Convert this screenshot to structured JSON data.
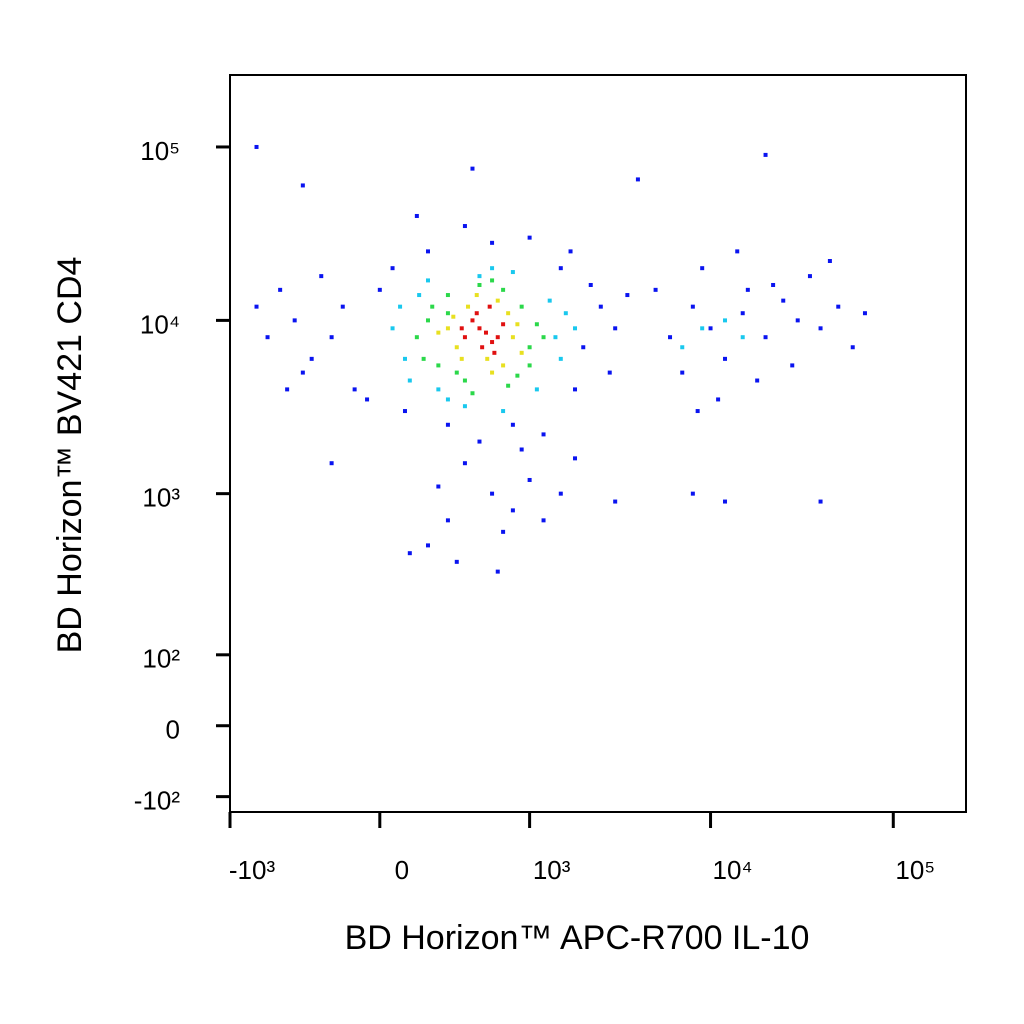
{
  "chart_data": {
    "type": "scatter",
    "x_label": "BD Horizon™ APC-R700  IL-10",
    "y_label": "BD Horizon™ BV421 CD4",
    "xscale": "biexponential",
    "yscale": "biexponential",
    "xlim": [
      -1000,
      250000
    ],
    "ylim": [
      -130,
      260000
    ],
    "xticks": [
      {
        "value": -1000,
        "label": "-10³"
      },
      0,
      {
        "value": 1000,
        "label": "10³"
      },
      {
        "value": 10000,
        "label": "10⁴"
      },
      {
        "value": 100000,
        "label": "10⁵"
      }
    ],
    "yticks": [
      {
        "value": -100,
        "label": "-10²"
      },
      0,
      {
        "value": 100,
        "label": "10²"
      },
      {
        "value": 1000,
        "label": "10³"
      },
      {
        "value": 10000,
        "label": "10⁴"
      },
      {
        "value": 100000,
        "label": "10⁵"
      }
    ],
    "series": [
      {
        "color": "#0a14f0",
        "x": [
          -200,
          -150,
          -300,
          0,
          -100,
          50,
          100,
          200,
          300,
          2000,
          2500,
          1800,
          3000,
          1500,
          800,
          1000,
          -400,
          -250,
          -50,
          2200,
          400,
          1200,
          600,
          -350,
          150,
          2800,
          3500,
          1700,
          -700,
          450,
          20000,
          4000,
          -350,
          6000,
          8000,
          10000,
          12000,
          15000,
          20000,
          25000,
          30000,
          40000,
          7000,
          9000,
          18000,
          35000,
          50000,
          5000,
          11000,
          22000,
          60000,
          14000,
          45000,
          70000,
          28000,
          8500,
          16000,
          400,
          600,
          800,
          300,
          1000,
          700,
          200,
          900,
          1500,
          500,
          350,
          650,
          120,
          1200,
          3000,
          -200,
          1800,
          250,
          8000,
          12000,
          40000,
          -600,
          -500,
          -700,
          -450
        ],
        "values": [
          8000,
          12000,
          6000,
          15000,
          4000,
          20000,
          3000,
          25000,
          2500,
          7000,
          12000,
          4000,
          9000,
          20000,
          2500,
          30000,
          10000,
          18000,
          3500,
          16000,
          35000,
          2200,
          28000,
          5000,
          40000,
          5000,
          14000,
          25000,
          100000,
          75000,
          90000,
          65000,
          60000,
          8000,
          12000,
          9000,
          6000,
          11000,
          8000,
          13000,
          10000,
          9000,
          5000,
          20000,
          4500,
          18000,
          12000,
          15000,
          3500,
          16000,
          7000,
          25000,
          22000,
          11000,
          5500,
          3000,
          15000,
          1500,
          1000,
          800,
          700,
          1200,
          600,
          500,
          1800,
          1000,
          2000,
          400,
          350,
          450,
          700,
          900,
          1500,
          1600,
          1100,
          1000,
          900,
          900,
          8000,
          15000,
          12000,
          4000
        ]
      },
      {
        "color": "#19c8ee",
        "x": [
          50,
          100,
          1400,
          1600,
          200,
          120,
          1300,
          300,
          800,
          1500,
          80,
          600,
          250,
          1100,
          400,
          160,
          1800,
          500,
          700,
          9000,
          12000,
          15000,
          7000
        ],
        "values": [
          9000,
          6000,
          8000,
          11000,
          17000,
          4500,
          13000,
          3500,
          19000,
          6000,
          12000,
          20000,
          4000,
          4000,
          3200,
          14000,
          9000,
          18000,
          3000,
          9000,
          10000,
          8000,
          7000
        ]
      },
      {
        "color": "#2bd84a",
        "x": [
          150,
          200,
          1000,
          1100,
          300,
          250,
          900,
          400,
          700,
          1200,
          180,
          500,
          350,
          850,
          600,
          220,
          1000,
          450,
          300,
          750
        ],
        "values": [
          8000,
          10000,
          7000,
          9500,
          14000,
          5500,
          12000,
          4500,
          15000,
          8000,
          6000,
          16000,
          5000,
          4800,
          17000,
          12000,
          5500,
          3800,
          11000,
          4200
        ]
      },
      {
        "color": "#e8e020",
        "x": [
          300,
          350,
          800,
          750,
          420,
          900,
          250,
          650,
          560,
          330,
          850,
          700,
          480,
          600,
          380
        ],
        "values": [
          9000,
          7000,
          8000,
          11000,
          12000,
          6500,
          8500,
          13000,
          6000,
          10500,
          9500,
          5500,
          14000,
          5000,
          6000
        ]
      },
      {
        "color": "#e01010",
        "x": [
          400,
          500,
          600,
          450,
          550,
          700,
          520,
          480,
          650,
          380,
          580,
          620
        ],
        "values": [
          8000,
          9000,
          7500,
          10000,
          8500,
          9500,
          7000,
          11000,
          8000,
          9000,
          12000,
          6500
        ]
      }
    ]
  }
}
